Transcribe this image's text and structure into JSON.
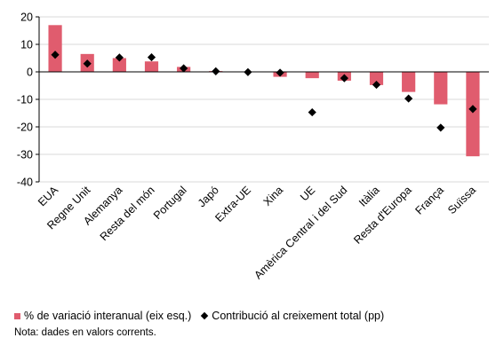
{
  "chart_data": {
    "type": "bar",
    "title": "",
    "categories": [
      "EUA",
      "Regne Unit",
      "Alemanya",
      "Resta del món",
      "Portugal",
      "Japó",
      "Extra-UE",
      "Xina",
      "UE",
      "Amèrica Central i del Sud",
      "Itàlia",
      "Resta d'Europa",
      "França",
      "Suïssa"
    ],
    "series": [
      {
        "name": "% de variació interanual (eix esq.)",
        "kind": "bar",
        "color": "#e05c6e",
        "values": [
          17,
          6.5,
          5,
          3.8,
          1.8,
          0.3,
          0,
          -1.8,
          -2.3,
          -3.2,
          -4.8,
          -7.3,
          -11.8,
          -30.7
        ]
      },
      {
        "name": "Contribució al creixement total (pp)",
        "kind": "marker",
        "color": "#000000",
        "values": [
          6.2,
          3,
          5.2,
          5.3,
          1.3,
          0.2,
          -0.1,
          -0.3,
          -14.7,
          -2.3,
          -4.7,
          -9.7,
          -20.3,
          -13.5
        ]
      }
    ],
    "ylim": [
      -40,
      20
    ],
    "yticks": [
      20,
      10,
      0,
      -10,
      -20,
      -30,
      -40
    ],
    "grid": true,
    "legend_position": "bottom-left"
  },
  "legend": {
    "bar_label": "% de variació interanual (eix esq.)",
    "marker_label": "Contribució al creixement total (pp)"
  },
  "note": "Nota: dades en valors corrents."
}
